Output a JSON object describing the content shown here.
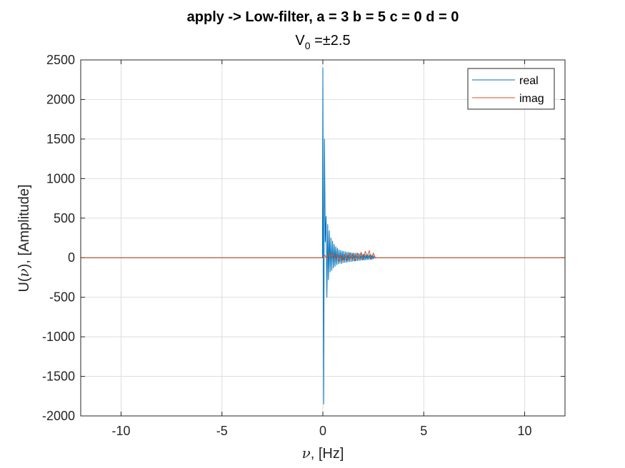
{
  "chart_data": {
    "type": "line",
    "title": "apply -> Low-filter, a = 3 b = 5 c = 0 d = 0",
    "subtitle": {
      "text": "V",
      "subscript": "0",
      "suffix": " =±2.5"
    },
    "xlabel": {
      "symbol": "ν",
      "suffix": ", [Hz]"
    },
    "ylabel": {
      "prefix": "U(",
      "symbol": "ν",
      "suffix": "), [Amplitude]"
    },
    "xlim": [
      -12,
      12
    ],
    "ylim": [
      -2000,
      2500
    ],
    "xticks": [
      -10,
      -5,
      0,
      5,
      10
    ],
    "xtick_labels": [
      "-10",
      "-5",
      "0",
      "5",
      "10"
    ],
    "yticks": [
      -2000,
      -1500,
      -1000,
      -500,
      0,
      500,
      1000,
      1500,
      2000,
      2500
    ],
    "ytick_labels": [
      "-2000",
      "-1500",
      "-1000",
      "-500",
      "0",
      "500",
      "1000",
      "1500",
      "2000",
      "2500"
    ],
    "grid": true,
    "legend_position": "top-right",
    "series": [
      {
        "name": "real",
        "color": "#0072BD",
        "x": [
          -12,
          -0.02,
          0.0,
          0.04,
          0.08,
          0.12,
          0.16,
          0.2,
          0.24,
          0.28,
          0.32,
          0.36,
          0.4,
          0.44,
          0.48,
          0.52,
          0.56,
          0.6,
          0.64,
          0.68,
          0.72,
          0.76,
          0.8,
          0.84,
          0.88,
          0.92,
          0.96,
          1.0,
          1.04,
          1.08,
          1.12,
          1.16,
          1.2,
          1.24,
          1.28,
          1.32,
          1.36,
          1.4,
          1.44,
          1.48,
          1.52,
          1.56,
          1.6,
          1.64,
          1.68,
          1.72,
          1.76,
          1.8,
          1.84,
          1.88,
          1.92,
          1.96,
          2.0,
          2.04,
          2.08,
          2.12,
          2.16,
          2.2,
          2.24,
          2.28,
          2.32,
          2.36,
          2.4,
          2.44,
          2.48,
          2.52,
          2.56,
          2.6,
          2.64,
          12
        ],
        "y": [
          0,
          0,
          2400,
          -1850,
          1500,
          200,
          520,
          -500,
          420,
          -280,
          340,
          -180,
          250,
          -160,
          210,
          -130,
          170,
          -110,
          140,
          -90,
          120,
          -80,
          100,
          -70,
          90,
          -75,
          85,
          -65,
          80,
          -60,
          75,
          -60,
          70,
          -55,
          68,
          -50,
          65,
          -48,
          62,
          -45,
          60,
          -42,
          58,
          -40,
          55,
          -38,
          52,
          -36,
          50,
          -34,
          48,
          -32,
          46,
          -30,
          44,
          -28,
          42,
          -26,
          40,
          -24,
          38,
          -22,
          35,
          -20,
          30,
          -15,
          25,
          -5,
          0,
          0
        ]
      },
      {
        "name": "imag",
        "color": "#D95319",
        "x": [
          -12,
          0.0,
          0.1,
          0.2,
          0.3,
          0.4,
          0.5,
          0.6,
          0.7,
          0.8,
          0.9,
          1.0,
          1.1,
          1.2,
          1.3,
          1.4,
          1.5,
          1.6,
          1.7,
          1.8,
          1.9,
          2.0,
          2.1,
          2.2,
          2.3,
          2.4,
          2.5,
          2.6,
          12
        ],
        "y": [
          0,
          0,
          30,
          -20,
          60,
          10,
          50,
          -20,
          40,
          -40,
          30,
          -50,
          40,
          -30,
          60,
          -20,
          50,
          -40,
          60,
          -10,
          70,
          -20,
          80,
          20,
          90,
          -20,
          60,
          0,
          0
        ]
      }
    ]
  }
}
